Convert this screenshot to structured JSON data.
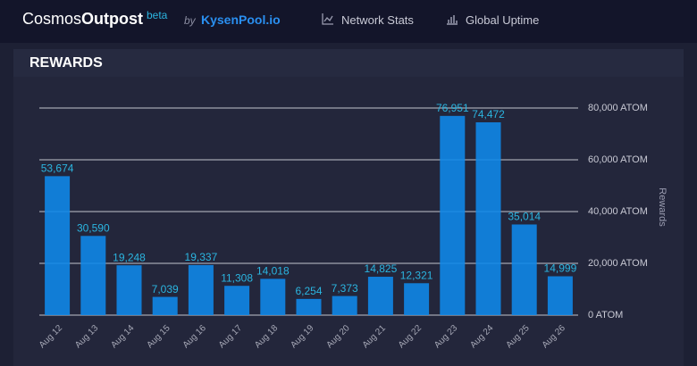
{
  "header": {
    "brand_light": "Cosmos",
    "brand_bold": "Outpost",
    "badge": "beta",
    "by": "by",
    "provider": "KysenPool.io",
    "nav": [
      "Network Stats",
      "Global Uptime"
    ]
  },
  "chart_data": {
    "type": "bar",
    "title": "REWARDS",
    "y_label": "Rewards",
    "categories": [
      "Aug 12",
      "Aug 13",
      "Aug 14",
      "Aug 15",
      "Aug 16",
      "Aug 17",
      "Aug 18",
      "Aug 19",
      "Aug 20",
      "Aug 21",
      "Aug 22",
      "Aug 23",
      "Aug 24",
      "Aug 25",
      "Aug 26"
    ],
    "values": [
      53674,
      30590,
      19248,
      7039,
      19337,
      11308,
      14018,
      6254,
      7373,
      14825,
      12321,
      76951,
      74472,
      35014,
      14999
    ],
    "value_labels": [
      "53,674",
      "30,590",
      "19,248",
      "7,039",
      "19,337",
      "11,308",
      "14,018",
      "6,254",
      "7,373",
      "14,825",
      "12,321",
      "76,951",
      "74,472",
      "35,014",
      "14,999"
    ],
    "color": "#0f87e8",
    "ylim": [
      0,
      80000
    ],
    "yticks": [
      {
        "value": 0,
        "label": "0 ATOM"
      },
      {
        "value": 20000,
        "label": "20,000 ATOM"
      },
      {
        "value": 40000,
        "label": "40,000 ATOM"
      },
      {
        "value": 60000,
        "label": "60,000 ATOM"
      },
      {
        "value": 80000,
        "label": "80,000 ATOM"
      }
    ],
    "grid": true
  }
}
